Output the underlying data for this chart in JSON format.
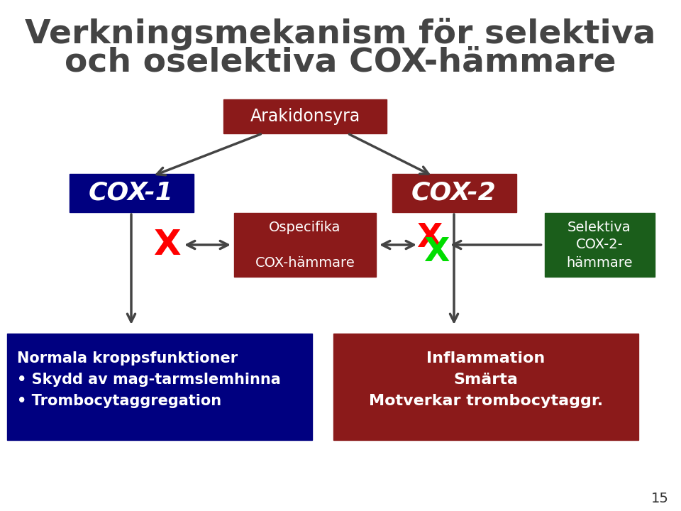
{
  "title_line1": "Verkningsmekanism för selektiva",
  "title_line2": "och oselektiva COX-hämmare",
  "title_color": "#444444",
  "bg_color": "#ffffff",
  "page_number": "15",
  "arakidonsyra_text": "Arakidonsyra",
  "arakidonsyra_bg": "#8B1A1A",
  "arakidonsyra_fg": "#ffffff",
  "cox1_text": "COX-1",
  "cox1_bg": "#000080",
  "cox1_fg": "#ffffff",
  "cox2_text": "COX-2",
  "cox2_bg": "#8B1A1A",
  "cox2_fg": "#ffffff",
  "ospecifika_text": "Ospecifika\n\nCOX-hämmare",
  "ospecifika_bg": "#8B1A1A",
  "ospecifika_fg": "#ffffff",
  "selektiva_text": "Selektiva\nCOX-2-\nhämmare",
  "selektiva_bg": "#1B5E1B",
  "selektiva_fg": "#ffffff",
  "normala_text": "Normala kroppsfunktioner\n• Skydd av mag-tarmslemhinna\n• Trombocytaggregation",
  "normala_bg": "#000080",
  "normala_fg": "#ffffff",
  "inflammation_text": "Inflammation\nSmärta\nMotverkar trombocytaggr.",
  "inflammation_bg": "#8B1A1A",
  "inflammation_fg": "#ffffff",
  "x_red_color": "#FF0000",
  "x_green_color": "#00DD00",
  "arrow_color": "#444444"
}
